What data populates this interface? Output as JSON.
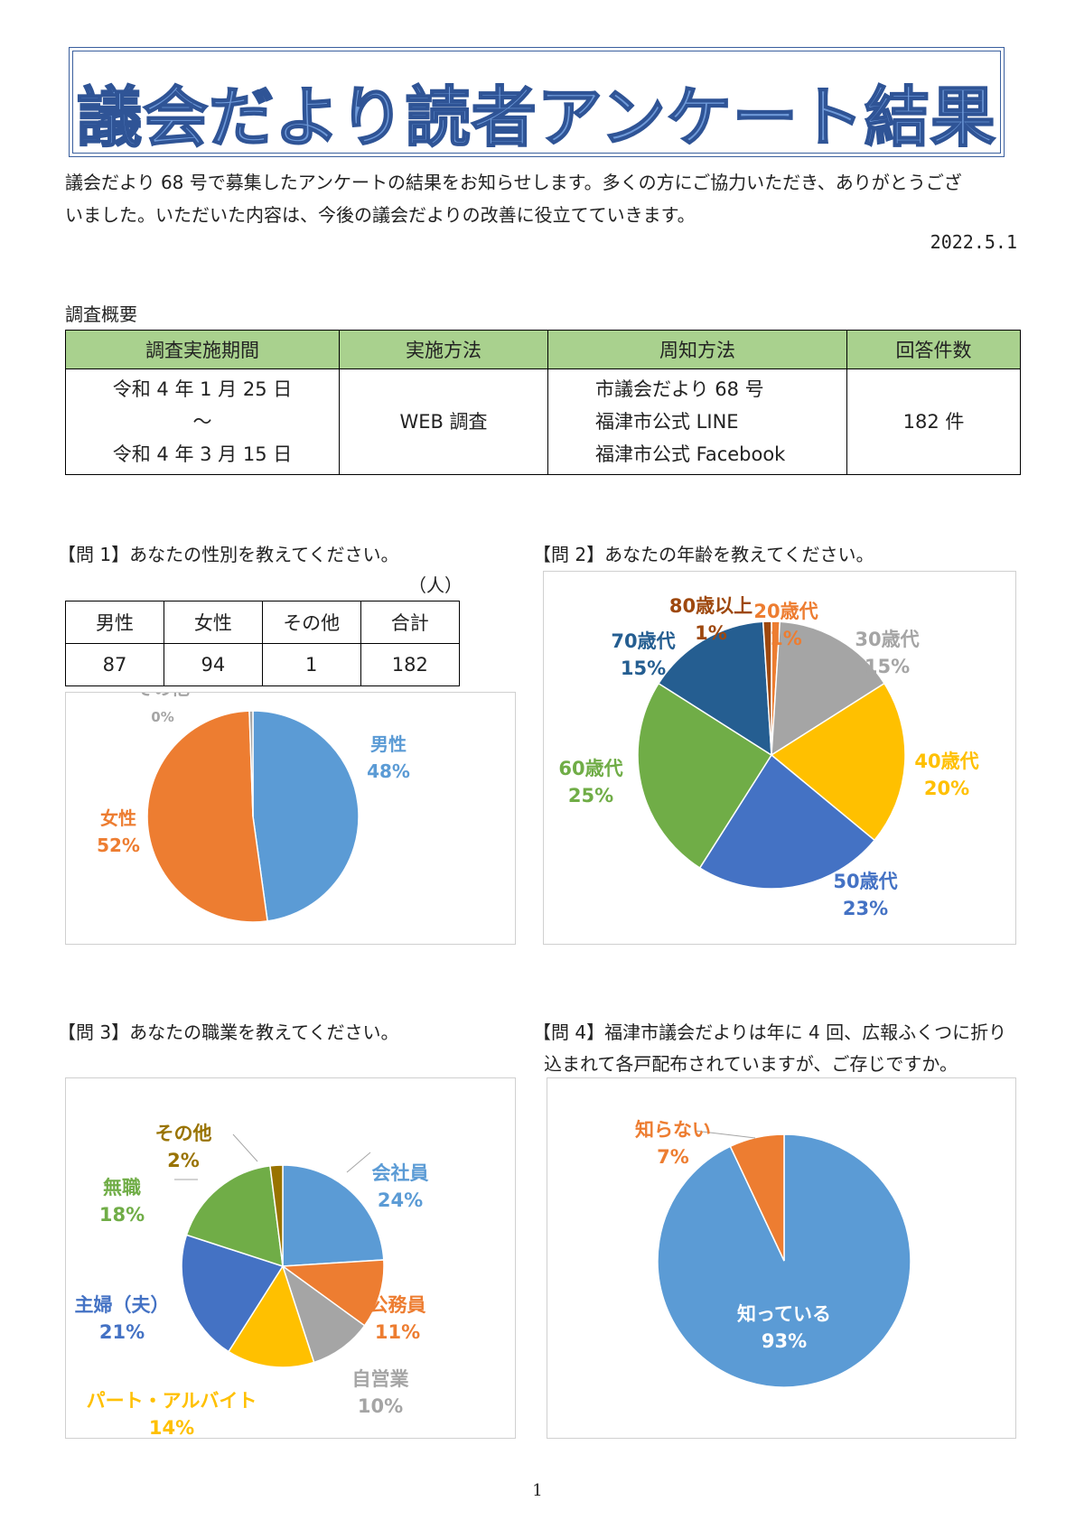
{
  "title": "議会だより読者アンケート結果",
  "intro": {
    "line1": "議会だより 68 号で募集したアンケートの結果をお知らせします。多くの方にご協力いただき、ありがとうござ",
    "line2": "いました。いただいた内容は、今後の議会だよりの改善に役立てていきます。",
    "date": "2022.5.1"
  },
  "summary": {
    "heading": "調査概要",
    "headers": [
      "調査実施期間",
      "実施方法",
      "周知方法",
      "回答件数"
    ],
    "period": [
      "令和 4 年 1 月 25 日",
      "～",
      "令和 4 年 3 月 15 日"
    ],
    "method": "WEB 調査",
    "notice": [
      "市議会だより 68 号",
      "福津市公式 LINE",
      "福津市公式 Facebook"
    ],
    "count": "182 件"
  },
  "q1": {
    "question": "【問 1】あなたの性別を教えてください。",
    "unit": "（人）",
    "table_headers": [
      "男性",
      "女性",
      "その他",
      "合計"
    ],
    "table_values": [
      "87",
      "94",
      "1",
      "182"
    ]
  },
  "q2": {
    "question": "【問 2】あなたの年齢を教えてください。"
  },
  "q3": {
    "question": "【問 3】あなたの職業を教えてください。"
  },
  "q4": {
    "question_line1": "【問 4】福津市議会だよりは年に 4 回、広報ふくつに折り",
    "question_line2": "込まれて各戸配布されていますが、ご存じですか。"
  },
  "page_number": "1",
  "chart_data": [
    {
      "id": "gender",
      "type": "pie",
      "slices": [
        {
          "label": "男性",
          "pct_label": "48%",
          "value": 87,
          "color": "#5b9bd5"
        },
        {
          "label": "女性",
          "pct_label": "52%",
          "value": 94,
          "color": "#ed7d31"
        },
        {
          "label": "その他",
          "pct_label": "0%",
          "value": 1,
          "color": "#a5a5a5"
        }
      ]
    },
    {
      "id": "age",
      "type": "pie",
      "slices": [
        {
          "label": "20歳代",
          "pct_label": "1%",
          "value": 1,
          "color": "#ed7d31"
        },
        {
          "label": "30歳代",
          "pct_label": "15%",
          "value": 15,
          "color": "#a5a5a5"
        },
        {
          "label": "40歳代",
          "pct_label": "20%",
          "value": 20,
          "color": "#ffc000"
        },
        {
          "label": "50歳代",
          "pct_label": "23%",
          "value": 23,
          "color": "#4472c4"
        },
        {
          "label": "60歳代",
          "pct_label": "25%",
          "value": 25,
          "color": "#70ad47"
        },
        {
          "label": "70歳代",
          "pct_label": "15%",
          "value": 15,
          "color": "#255e91"
        },
        {
          "label": "80歳以上",
          "pct_label": "1%",
          "value": 1,
          "color": "#9e480e"
        }
      ]
    },
    {
      "id": "occupation",
      "type": "pie",
      "slices": [
        {
          "label": "会社員",
          "pct_label": "24%",
          "value": 24,
          "color": "#5b9bd5"
        },
        {
          "label": "公務員",
          "pct_label": "11%",
          "value": 11,
          "color": "#ed7d31"
        },
        {
          "label": "自営業",
          "pct_label": "10%",
          "value": 10,
          "color": "#a5a5a5"
        },
        {
          "label": "パート・アルバイト",
          "pct_label": "14%",
          "value": 14,
          "color": "#ffc000"
        },
        {
          "label": "主婦（夫）",
          "pct_label": "21%",
          "value": 21,
          "color": "#4472c4"
        },
        {
          "label": "無職",
          "pct_label": "18%",
          "value": 18,
          "color": "#70ad47"
        },
        {
          "label": "その他",
          "pct_label": "2%",
          "value": 2,
          "color": "#997300"
        }
      ]
    },
    {
      "id": "awareness",
      "type": "pie",
      "slices": [
        {
          "label": "知っている",
          "pct_label": "93%",
          "value": 93,
          "color": "#5b9bd5"
        },
        {
          "label": "知らない",
          "pct_label": "7%",
          "value": 7,
          "color": "#ed7d31"
        }
      ]
    }
  ]
}
